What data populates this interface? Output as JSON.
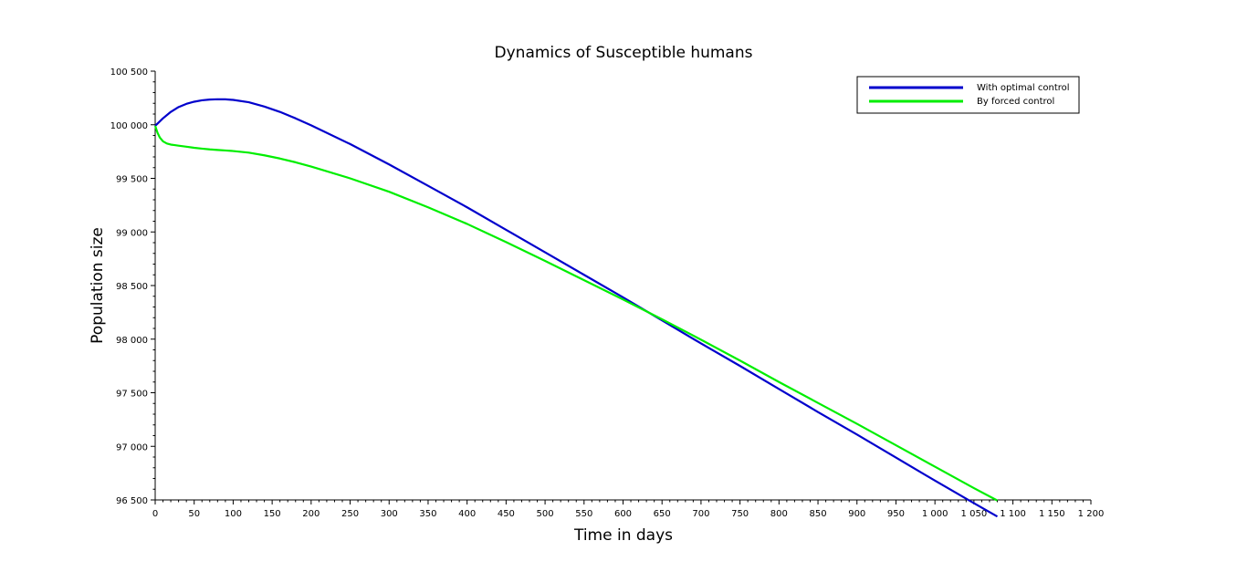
{
  "chart_data": {
    "type": "line",
    "title": "Dynamics of Susceptible humans",
    "xlabel": "Time in days",
    "ylabel": "Population size",
    "xlim": [
      0,
      1200
    ],
    "ylim": [
      96500,
      100500
    ],
    "x_ticks": [
      0,
      50,
      100,
      150,
      200,
      250,
      300,
      350,
      400,
      450,
      500,
      550,
      600,
      650,
      700,
      750,
      800,
      850,
      900,
      950,
      1000,
      1050,
      1100,
      1150,
      1200
    ],
    "x_tick_labels": [
      "0",
      "50",
      "100",
      "150",
      "200",
      "250",
      "300",
      "350",
      "400",
      "450",
      "500",
      "550",
      "600",
      "650",
      "700",
      "750",
      "800",
      "850",
      "900",
      "950",
      "1 000",
      "1 050",
      "1 100",
      "1 150",
      "1 200"
    ],
    "y_ticks": [
      96500,
      97000,
      97500,
      98000,
      98500,
      99000,
      99500,
      100000,
      100500
    ],
    "y_tick_labels": [
      "96 500",
      "97 000",
      "97 500",
      "98 000",
      "98 500",
      "99 000",
      "99 500",
      "100 000",
      "100 500"
    ],
    "grid": false,
    "legend_position": "top-right",
    "series": [
      {
        "name": "With optimal control",
        "color": "#0000cc",
        "x": [
          0,
          10,
          20,
          30,
          40,
          50,
          60,
          70,
          80,
          90,
          100,
          120,
          140,
          160,
          180,
          200,
          250,
          300,
          350,
          400,
          450,
          500,
          550,
          600,
          650,
          700,
          750,
          800,
          850,
          900,
          950,
          1000,
          1050,
          1080
        ],
        "y": [
          99990,
          100060,
          100120,
          100165,
          100195,
          100215,
          100228,
          100235,
          100238,
          100237,
          100232,
          100210,
          100170,
          100120,
          100060,
          99995,
          99820,
          99630,
          99430,
          99230,
          99020,
          98810,
          98600,
          98390,
          98175,
          97960,
          97750,
          97535,
          97320,
          97110,
          96895,
          96680,
          96470,
          96345
        ]
      },
      {
        "name": "By forced control",
        "color": "#00ee00",
        "x": [
          0,
          3,
          6,
          10,
          15,
          20,
          25,
          30,
          40,
          50,
          60,
          70,
          80,
          90,
          100,
          120,
          140,
          160,
          180,
          200,
          250,
          300,
          350,
          400,
          450,
          500,
          550,
          600,
          650,
          700,
          750,
          800,
          850,
          900,
          950,
          1000,
          1050,
          1080
        ],
        "y": [
          99990,
          99925,
          99880,
          99845,
          99825,
          99815,
          99810,
          99805,
          99795,
          99785,
          99777,
          99770,
          99765,
          99760,
          99755,
          99740,
          99715,
          99685,
          99650,
          99610,
          99500,
          99375,
          99230,
          99075,
          98905,
          98730,
          98550,
          98370,
          98185,
          97995,
          97800,
          97600,
          97405,
          97210,
          97010,
          96810,
          96610,
          96495
        ]
      }
    ]
  }
}
